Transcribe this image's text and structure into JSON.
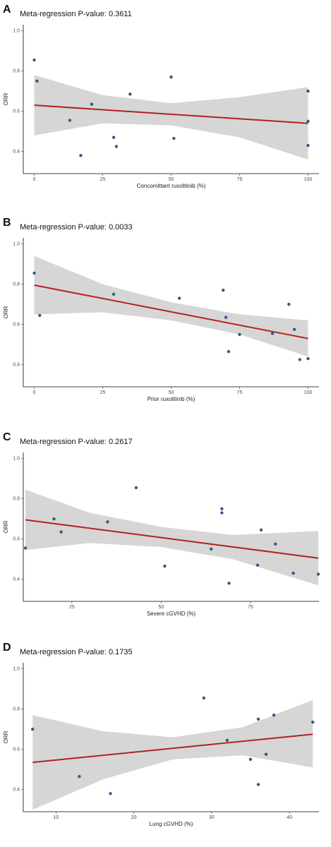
{
  "chart_data": [
    {
      "type": "scatter",
      "panel_label": "A",
      "title": "Meta-regression P-value: 0.3611",
      "x_label": "Concomittant ruxolitinib (%)",
      "y_label": "ORR",
      "x": [
        0,
        1,
        13,
        17,
        21,
        29,
        30,
        35,
        50,
        51,
        100,
        100,
        100
      ],
      "y": [
        0.855,
        0.75,
        0.555,
        0.38,
        0.635,
        0.47,
        0.425,
        0.685,
        0.77,
        0.465,
        0.7,
        0.55,
        0.43
      ],
      "color": "#2e5c8a",
      "xlim": [
        -4,
        104
      ],
      "ylim": [
        0.29,
        1.03
      ],
      "xticks": [
        0,
        25,
        50,
        75,
        100
      ],
      "yticks": [
        0.4,
        0.6,
        0.8,
        {
          "value": 1,
          "label": "1.0"
        }
      ],
      "fit": {
        "x": [
          0,
          100
        ],
        "y": [
          0.63,
          0.54
        ],
        "color": "#b22222"
      },
      "band": {
        "x": [
          0,
          25,
          50,
          75,
          100
        ],
        "lower": [
          0.48,
          0.54,
          0.53,
          0.47,
          0.36
        ],
        "upper": [
          0.78,
          0.68,
          0.64,
          0.67,
          0.72
        ],
        "color": "#d6d6d6"
      }
    },
    {
      "type": "scatter",
      "panel_label": "B",
      "title": "Meta-regression P-value: 0.0033",
      "x_label": "Prior ruxolitinib (%)",
      "y_label": "ORR",
      "x": [
        0,
        2,
        29,
        53,
        69,
        70,
        71,
        75,
        87,
        93,
        95,
        97,
        100
      ],
      "y": [
        0.855,
        0.645,
        0.75,
        0.73,
        0.77,
        0.635,
        0.465,
        0.55,
        0.555,
        0.7,
        0.575,
        0.425,
        0.43
      ],
      "color": "#2e5c8a",
      "xlim": [
        -4,
        104
      ],
      "ylim": [
        0.29,
        1.03
      ],
      "xticks": [
        0,
        25,
        50,
        75,
        100
      ],
      "yticks": [
        0.4,
        0.6,
        0.8,
        {
          "value": 1,
          "label": "1.0"
        }
      ],
      "fit": {
        "x": [
          0,
          100
        ],
        "y": [
          0.795,
          0.53
        ],
        "color": "#b22222"
      },
      "band": {
        "x": [
          0,
          25,
          50,
          75,
          100
        ],
        "lower": [
          0.65,
          0.66,
          0.62,
          0.55,
          0.44
        ],
        "upper": [
          0.94,
          0.8,
          0.71,
          0.65,
          0.62
        ],
        "color": "#d6d6d6"
      }
    },
    {
      "type": "scatter",
      "panel_label": "C",
      "title": "Meta-regression P-value: 0.2617",
      "x_label": "Severe cGVHD (%)",
      "y_label": "ORR",
      "x": [
        12,
        20,
        22,
        35,
        43,
        51,
        64,
        67,
        67,
        69,
        77,
        78,
        82,
        87,
        94
      ],
      "y": [
        0.555,
        0.7,
        0.635,
        0.685,
        0.855,
        0.465,
        0.55,
        0.75,
        0.73,
        0.38,
        0.47,
        0.645,
        0.575,
        0.43,
        0.425
      ],
      "color": "#2e5c8a",
      "xlim": [
        11.4,
        94.2
      ],
      "ylim": [
        0.29,
        1.03
      ],
      "xticks": [
        25,
        50,
        75
      ],
      "yticks": [
        0.4,
        0.6,
        0.8,
        {
          "value": 1,
          "label": "1.0"
        }
      ],
      "fit": {
        "x": [
          12,
          94
        ],
        "y": [
          0.695,
          0.505
        ],
        "color": "#b22222"
      },
      "band": {
        "x": [
          12,
          30,
          50,
          70,
          94
        ],
        "lower": [
          0.545,
          0.58,
          0.56,
          0.5,
          0.37
        ],
        "upper": [
          0.845,
          0.73,
          0.66,
          0.62,
          0.64
        ],
        "color": "#d6d6d6"
      }
    },
    {
      "type": "scatter",
      "panel_label": "D",
      "title": "Meta-regression P-value: 0.1735",
      "x_label": "Lung cGVHD (%)",
      "y_label": "ORR",
      "x": [
        7,
        13,
        17,
        29,
        32,
        35,
        36,
        36,
        37,
        38,
        43
      ],
      "y": [
        0.7,
        0.465,
        0.38,
        0.855,
        0.645,
        0.55,
        0.75,
        0.425,
        0.575,
        0.77,
        0.735
      ],
      "color": "#2e5c8a",
      "xlim": [
        5.8,
        43.8
      ],
      "ylim": [
        0.29,
        1.03
      ],
      "xticks": [
        10,
        20,
        30,
        40
      ],
      "yticks": [
        0.4,
        0.6,
        0.8,
        {
          "value": 1,
          "label": "1.0"
        }
      ],
      "fit": {
        "x": [
          7,
          43
        ],
        "y": [
          0.535,
          0.675
        ],
        "color": "#b22222"
      },
      "band": {
        "x": [
          7,
          16,
          25,
          34,
          43
        ],
        "lower": [
          0.3,
          0.45,
          0.55,
          0.57,
          0.51
        ],
        "upper": [
          0.77,
          0.69,
          0.66,
          0.71,
          0.845
        ],
        "color": "#d6d6d6"
      }
    }
  ]
}
